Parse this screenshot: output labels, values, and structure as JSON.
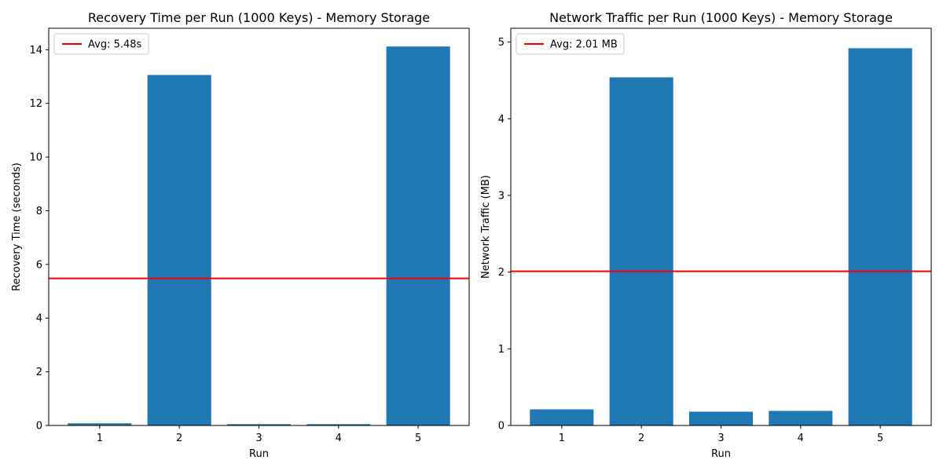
{
  "chart_data": [
    {
      "type": "bar",
      "title": "Recovery Time per Run (1000 Keys) - Memory Storage",
      "xlabel": "Run",
      "ylabel": "Recovery Time (seconds)",
      "categories": [
        "1",
        "2",
        "3",
        "4",
        "5"
      ],
      "values": [
        0.08,
        13.06,
        0.05,
        0.05,
        14.12
      ],
      "ylim": [
        0,
        14.8
      ],
      "yticks": [
        0,
        2,
        4,
        6,
        8,
        10,
        12,
        14
      ],
      "bar_color": "#1f77b4",
      "reference_line": {
        "value": 5.48,
        "label": "Avg: 5.48s",
        "color": "#ff0000"
      },
      "legend_position": "top-left",
      "grid": false
    },
    {
      "type": "bar",
      "title": "Network Traffic per Run (1000 Keys) - Memory Storage",
      "xlabel": "Run",
      "ylabel": "Network Traffic (MB)",
      "categories": [
        "1",
        "2",
        "3",
        "4",
        "5"
      ],
      "values": [
        0.21,
        4.54,
        0.18,
        0.19,
        4.92
      ],
      "ylim": [
        0,
        5.18
      ],
      "yticks": [
        0,
        1,
        2,
        3,
        4,
        5
      ],
      "bar_color": "#1f77b4",
      "reference_line": {
        "value": 2.01,
        "label": "Avg: 2.01 MB",
        "color": "#ff0000"
      },
      "legend_position": "top-left",
      "grid": false
    }
  ]
}
